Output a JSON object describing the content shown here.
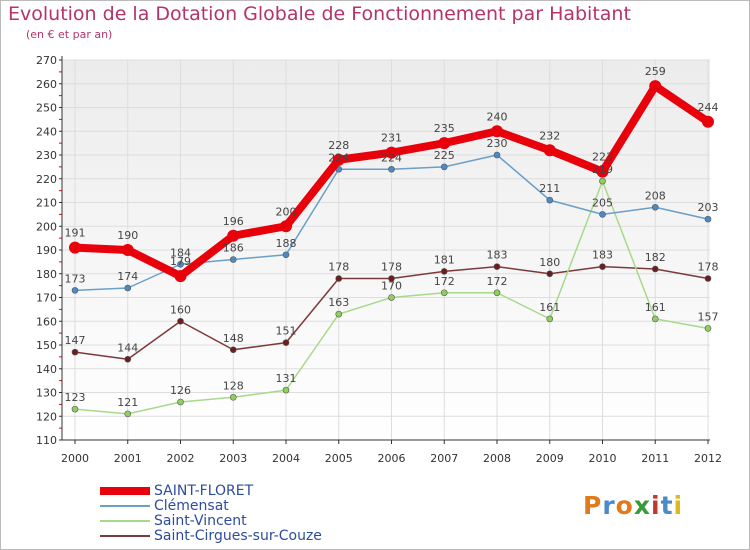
{
  "page": {
    "title": "Evolution de la Dotation Globale de Fonctionnement par Habitant",
    "subtitle": "(en € et par an)",
    "logo_text": "Proxiti"
  },
  "colors": {
    "title": "#b5336a",
    "legend_text": "#2e4c9c",
    "axis": "#333333",
    "grid": "#dddddd",
    "plot_bg_top": "#ececec",
    "plot_bg_bottom": "#ffffff"
  },
  "chart_data": {
    "type": "line",
    "title": "Evolution de la Dotation Globale de Fonctionnement par Habitant",
    "subtitle": "(en € et par an)",
    "xlabel": "",
    "ylabel": "",
    "categories": [
      "2000",
      "2001",
      "2002",
      "2003",
      "2004",
      "2005",
      "2006",
      "2007",
      "2008",
      "2009",
      "2010",
      "2011",
      "2012"
    ],
    "ylim": [
      110,
      270
    ],
    "yticks": [
      110,
      120,
      130,
      140,
      150,
      160,
      170,
      180,
      190,
      200,
      210,
      220,
      230,
      240,
      250,
      260,
      270
    ],
    "grid": true,
    "legend_position": "bottom-left",
    "series": [
      {
        "name": "SAINT-FLORET",
        "color": "#e8000b",
        "marker_color": "#e8000b",
        "width": "thick",
        "values": [
          191,
          190,
          179,
          196,
          200,
          228,
          231,
          235,
          240,
          232,
          223,
          259,
          244
        ],
        "labels": [
          "191",
          "190",
          "179",
          "196",
          "200",
          "228",
          "231",
          "235",
          "240",
          "232",
          "223",
          "259",
          "244"
        ]
      },
      {
        "name": "Clémensat",
        "color": "#6a9fc8",
        "marker_color": "#4a8ac9",
        "width": "thin",
        "values": [
          173,
          174,
          184,
          186,
          188,
          224,
          224,
          225,
          230,
          211,
          205,
          208,
          203
        ],
        "labels": [
          "173",
          "174",
          "184",
          "186",
          "188",
          "224",
          "224",
          "225",
          "230",
          "211",
          "205",
          "208",
          "203"
        ]
      },
      {
        "name": "Saint-Vincent",
        "color": "#a8d98a",
        "marker_color": "#8fd05a",
        "width": "thin",
        "values": [
          123,
          121,
          126,
          128,
          131,
          163,
          170,
          172,
          172,
          161,
          219,
          161,
          157
        ],
        "labels": [
          "123",
          "121",
          "126",
          "128",
          "131",
          "163",
          "170",
          "172",
          "172",
          "161",
          "219",
          "161",
          "157"
        ]
      },
      {
        "name": "Saint-Cirgues-sur-Couze",
        "color": "#7b3a3a",
        "marker_color": "#6b1e1e",
        "width": "thin",
        "values": [
          147,
          144,
          160,
          148,
          151,
          178,
          178,
          181,
          183,
          180,
          183,
          182,
          178
        ],
        "labels": [
          "147",
          "144",
          "160",
          "148",
          "151",
          "178",
          "178",
          "181",
          "183",
          "180",
          "183",
          "182",
          "178"
        ]
      }
    ]
  },
  "legend": {
    "items": [
      {
        "label": "SAINT-FLORET",
        "color": "#e8000b"
      },
      {
        "label": "Clémensat",
        "color": "#6a9fc8"
      },
      {
        "label": "Saint-Vincent",
        "color": "#a8d98a"
      },
      {
        "label": "Saint-Cirgues-sur-Couze",
        "color": "#7b3a3a"
      }
    ]
  }
}
